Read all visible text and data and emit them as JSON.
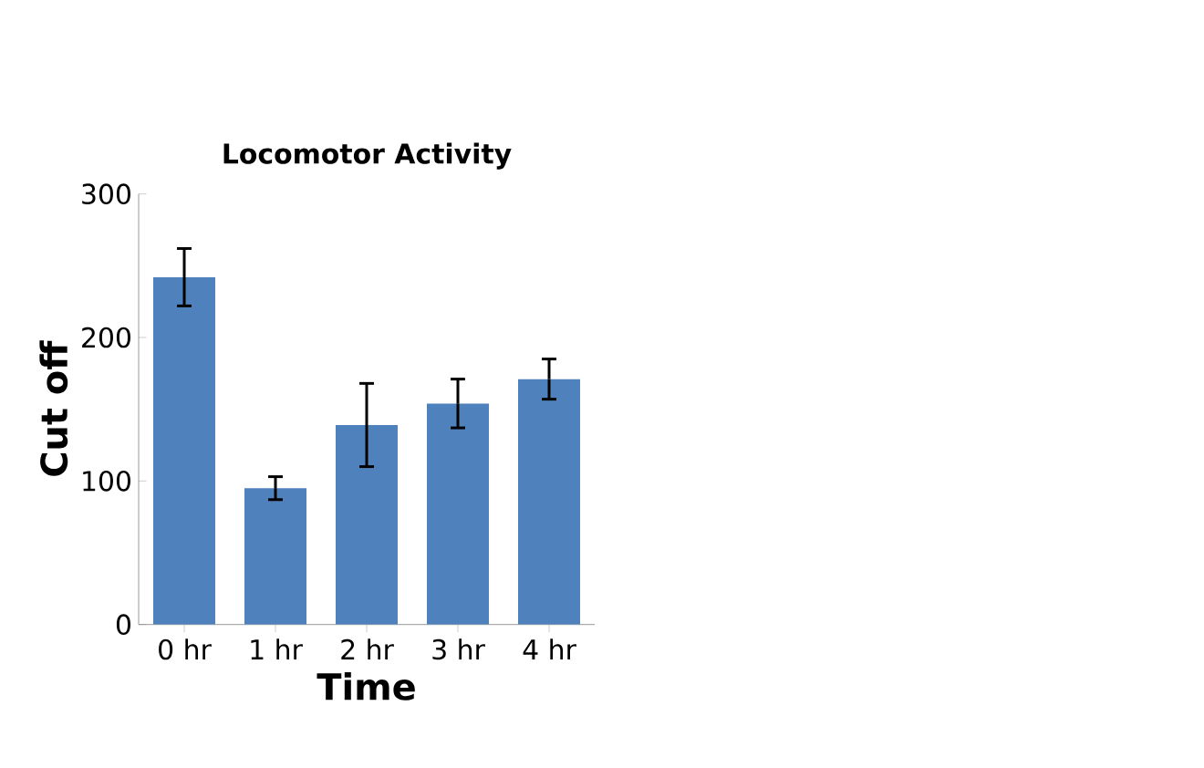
{
  "chart_data": {
    "type": "bar",
    "title": "Locomotor Activity",
    "xlabel": "Time",
    "ylabel": "Cut off",
    "categories": [
      "0 hr",
      "1 hr",
      "2 hr",
      "3 hr",
      "4 hr"
    ],
    "values": [
      242,
      95,
      139,
      154,
      171
    ],
    "errors": [
      20,
      8,
      29,
      17,
      14
    ],
    "color": "#4f81bd",
    "ylim": [
      0,
      300
    ],
    "yticks": [
      0,
      100,
      200,
      300
    ]
  }
}
